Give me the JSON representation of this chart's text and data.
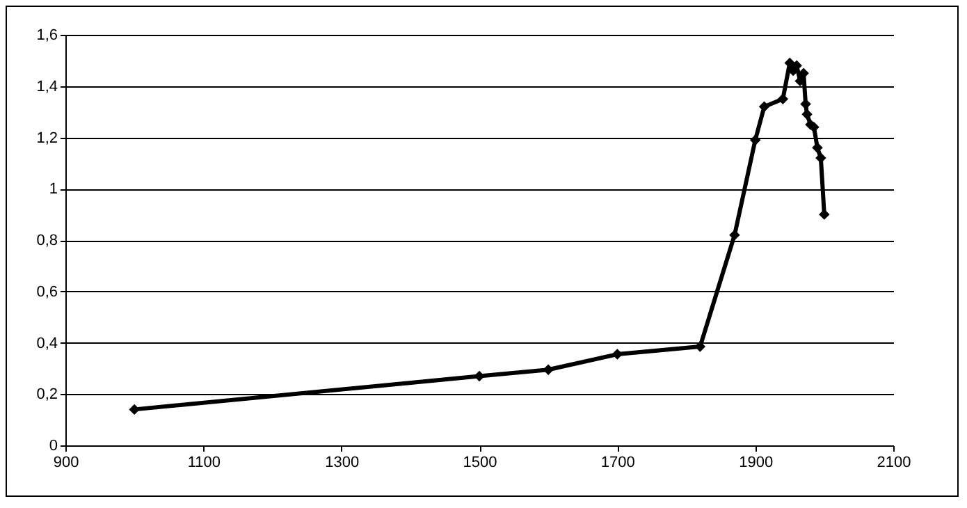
{
  "chart_data": {
    "type": "line",
    "x": [
      1000,
      1500,
      1600,
      1700,
      1820,
      1870,
      1900,
      1913,
      1940,
      1950,
      1955,
      1960,
      1965,
      1970,
      1973,
      1975,
      1980,
      1985,
      1990,
      1995,
      2000
    ],
    "series": [
      {
        "color": "#000000",
        "values": [
          0.14,
          0.27,
          0.295,
          0.355,
          0.385,
          0.82,
          1.19,
          1.32,
          1.35,
          1.49,
          1.46,
          1.48,
          1.42,
          1.45,
          1.33,
          1.29,
          1.25,
          1.24,
          1.16,
          1.12,
          0.9
        ]
      }
    ],
    "xlim": [
      900,
      2100
    ],
    "xticks": [
      900,
      1100,
      1300,
      1500,
      1700,
      1900,
      2100
    ],
    "ylim": [
      0,
      1.6
    ],
    "yticks": [
      0,
      {
        "value": 0.2,
        "label": "0,2"
      },
      {
        "value": 0.4,
        "label": "0,4"
      },
      {
        "value": 0.6,
        "label": "0,6"
      },
      {
        "value": 0.8,
        "label": "0,8"
      },
      1,
      {
        "value": 1.2,
        "label": "1,2"
      },
      {
        "value": 1.4,
        "label": "1,4"
      },
      {
        "value": 1.6,
        "label": "1,6"
      }
    ],
    "grid": "y",
    "marker": "diamond",
    "line_style": "solid"
  }
}
